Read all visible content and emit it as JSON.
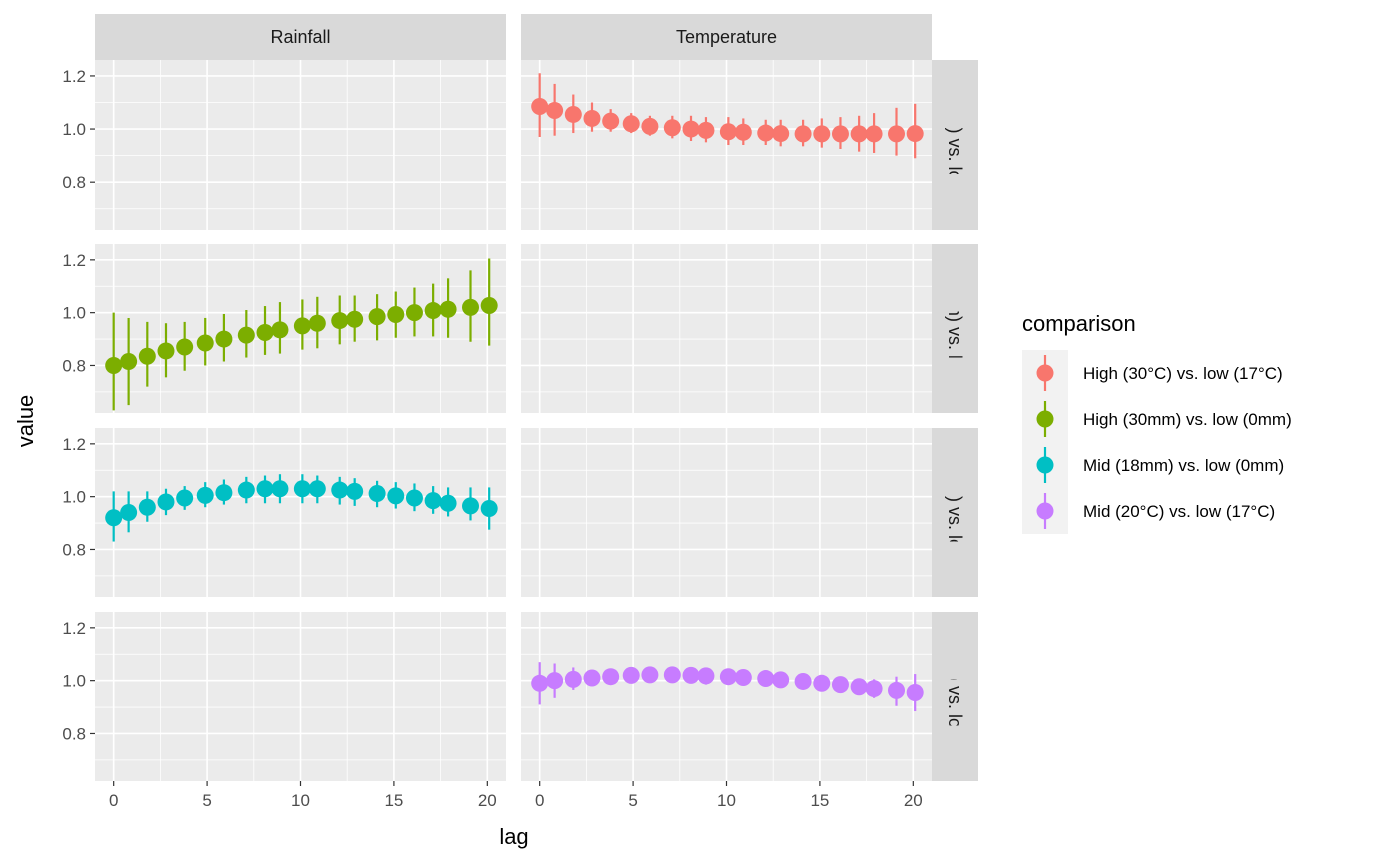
{
  "chart_data": {
    "type": "scatter",
    "xlabel": "lag",
    "ylabel": "value",
    "xlim": [
      -1,
      21
    ],
    "ylim": [
      0.62,
      1.26
    ],
    "x_ticks": [
      0,
      5,
      10,
      15,
      20
    ],
    "y_ticks": [
      0.8,
      1.0,
      1.2
    ],
    "grid": true,
    "legend_title": "comparison",
    "legend_position": "right",
    "columns": [
      "Rainfall",
      "Temperature"
    ],
    "rows": [
      "High (30°C) vs. low (17°C)",
      "High (30mm) vs. low (0mm)",
      "Mid (18mm) vs. low (0mm)",
      "Mid (20°C) vs. low (17°C)"
    ],
    "x": [
      0,
      0.8,
      1.8,
      2.8,
      3.8,
      4.9,
      5.9,
      7.1,
      8.1,
      8.9,
      10.1,
      10.9,
      12.1,
      12.9,
      14.1,
      15.1,
      16.1,
      17.1,
      17.9,
      19.1,
      20.1
    ],
    "series": [
      {
        "name": "High (30°C) vs. low (17°C)",
        "color": "#F8766D",
        "panel_row": 0,
        "panel_col": 1,
        "values": [
          1.085,
          1.07,
          1.055,
          1.04,
          1.03,
          1.02,
          1.01,
          1.005,
          1.0,
          0.995,
          0.99,
          0.988,
          0.985,
          0.983,
          0.982,
          0.982,
          0.982,
          0.982,
          0.982,
          0.982,
          0.983
        ],
        "lower": [
          0.97,
          0.975,
          0.985,
          0.99,
          0.99,
          0.985,
          0.975,
          0.965,
          0.955,
          0.95,
          0.94,
          0.94,
          0.94,
          0.935,
          0.935,
          0.93,
          0.925,
          0.915,
          0.91,
          0.9,
          0.89
        ],
        "upper": [
          1.21,
          1.17,
          1.13,
          1.1,
          1.075,
          1.06,
          1.05,
          1.05,
          1.05,
          1.045,
          1.045,
          1.04,
          1.035,
          1.035,
          1.035,
          1.04,
          1.045,
          1.05,
          1.06,
          1.08,
          1.095
        ]
      },
      {
        "name": "High (30mm) vs. low (0mm)",
        "color": "#7CAE00",
        "panel_row": 1,
        "panel_col": 0,
        "values": [
          0.8,
          0.815,
          0.835,
          0.855,
          0.87,
          0.885,
          0.9,
          0.915,
          0.925,
          0.935,
          0.95,
          0.96,
          0.97,
          0.975,
          0.985,
          0.993,
          1.0,
          1.008,
          1.013,
          1.02,
          1.027
        ],
        "lower": [
          0.63,
          0.65,
          0.72,
          0.755,
          0.78,
          0.8,
          0.815,
          0.83,
          0.84,
          0.845,
          0.86,
          0.865,
          0.88,
          0.89,
          0.895,
          0.905,
          0.91,
          0.91,
          0.905,
          0.89,
          0.875
        ],
        "upper": [
          1.0,
          0.98,
          0.965,
          0.96,
          0.965,
          0.98,
          0.995,
          1.01,
          1.025,
          1.04,
          1.05,
          1.06,
          1.065,
          1.065,
          1.07,
          1.08,
          1.095,
          1.11,
          1.13,
          1.16,
          1.205
        ]
      },
      {
        "name": "Mid (18mm) vs. low (0mm)",
        "color": "#00BFC4",
        "panel_row": 2,
        "panel_col": 0,
        "values": [
          0.92,
          0.94,
          0.96,
          0.98,
          0.995,
          1.005,
          1.015,
          1.025,
          1.03,
          1.03,
          1.03,
          1.03,
          1.025,
          1.02,
          1.012,
          1.003,
          0.995,
          0.985,
          0.975,
          0.965,
          0.955
        ],
        "lower": [
          0.83,
          0.865,
          0.905,
          0.93,
          0.95,
          0.96,
          0.97,
          0.975,
          0.975,
          0.975,
          0.975,
          0.975,
          0.97,
          0.965,
          0.96,
          0.955,
          0.945,
          0.935,
          0.925,
          0.91,
          0.875
        ],
        "upper": [
          1.02,
          1.02,
          1.02,
          1.03,
          1.04,
          1.055,
          1.065,
          1.075,
          1.08,
          1.085,
          1.085,
          1.08,
          1.075,
          1.07,
          1.06,
          1.055,
          1.05,
          1.04,
          1.035,
          1.035,
          1.035
        ]
      },
      {
        "name": "Mid (20°C) vs. low (17°C)",
        "color": "#C77CFF",
        "panel_row": 3,
        "panel_col": 1,
        "values": [
          0.99,
          1.0,
          1.005,
          1.01,
          1.015,
          1.02,
          1.022,
          1.022,
          1.02,
          1.018,
          1.015,
          1.012,
          1.008,
          1.003,
          0.997,
          0.99,
          0.985,
          0.977,
          0.97,
          0.963,
          0.955
        ],
        "lower": [
          0.91,
          0.935,
          0.965,
          0.985,
          0.995,
          1.0,
          1.005,
          0.995,
          0.99,
          0.985,
          0.985,
          0.985,
          0.985,
          0.98,
          0.975,
          0.97,
          0.96,
          0.95,
          0.935,
          0.905,
          0.885
        ],
        "upper": [
          1.07,
          1.065,
          1.05,
          1.04,
          1.035,
          1.04,
          1.04,
          1.045,
          1.045,
          1.045,
          1.04,
          1.035,
          1.03,
          1.025,
          1.02,
          1.015,
          1.01,
          1.005,
          1.005,
          1.015,
          1.025
        ]
      }
    ]
  }
}
